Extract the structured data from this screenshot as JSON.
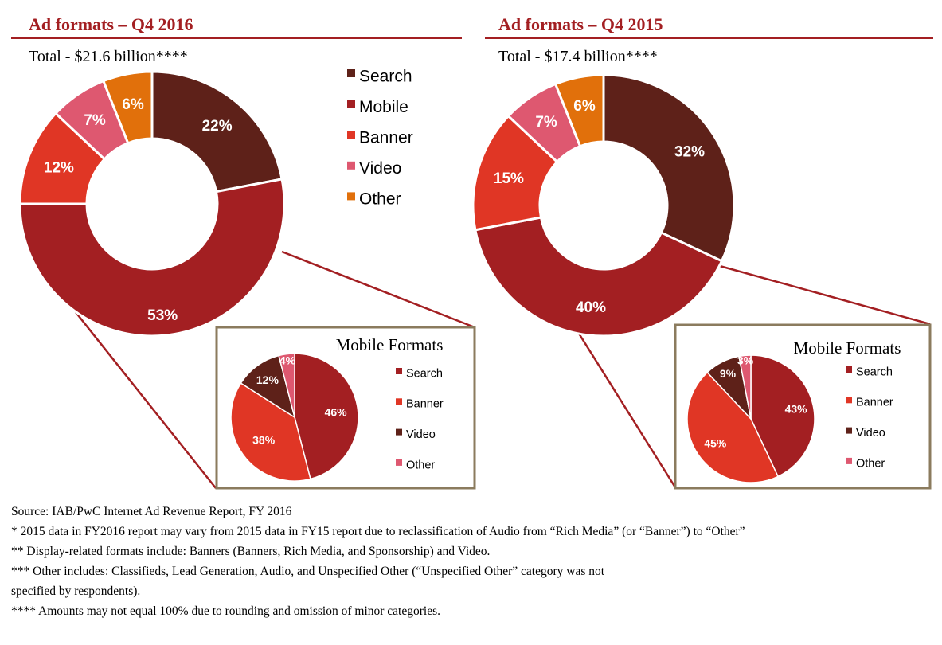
{
  "colors": {
    "search": "#5e2119",
    "mobile": "#a31f22",
    "banner": "#e03625",
    "video": "#de5870",
    "other": "#e1700b",
    "mobile_search": "#a31f22",
    "mobile_banner": "#e03625",
    "mobile_video": "#5e2119",
    "mobile_other": "#de5870",
    "title": "#a31f22",
    "inset_border": "#8b7b5e"
  },
  "panels": [
    {
      "title": "Ad formats – Q4 2016",
      "total": "Total - $21.6 billion****"
    },
    {
      "title": "Ad formats – Q4 2015",
      "total": "Total - $17.4 billion****"
    }
  ],
  "chart_data": [
    {
      "type": "pie",
      "variant": "donut",
      "title": "Ad formats – Q4 2016",
      "subtitle": "Total - $21.6 billion****",
      "legend_position": "right",
      "slices": [
        {
          "label": "Search",
          "value": 22,
          "text": "22%"
        },
        {
          "label": "Mobile",
          "value": 53,
          "text": "53%"
        },
        {
          "label": "Banner",
          "value": 12,
          "text": "12%"
        },
        {
          "label": "Video",
          "value": 7,
          "text": "7%"
        },
        {
          "label": "Other",
          "value": 6,
          "text": "6%"
        }
      ]
    },
    {
      "type": "pie",
      "title": "Mobile Formats",
      "legend_position": "right",
      "slices": [
        {
          "label": "Search",
          "value": 46,
          "text": "46%"
        },
        {
          "label": "Banner",
          "value": 38,
          "text": "38%"
        },
        {
          "label": "Video",
          "value": 12,
          "text": "12%"
        },
        {
          "label": "Other",
          "value": 4,
          "text": "4%"
        }
      ]
    },
    {
      "type": "pie",
      "variant": "donut",
      "title": "Ad formats – Q4 2015",
      "subtitle": "Total - $17.4 billion****",
      "slices": [
        {
          "label": "Search",
          "value": 32,
          "text": "32%"
        },
        {
          "label": "Mobile",
          "value": 40,
          "text": "40%"
        },
        {
          "label": "Banner",
          "value": 15,
          "text": "15%"
        },
        {
          "label": "Video",
          "value": 7,
          "text": "7%"
        },
        {
          "label": "Other",
          "value": 6,
          "text": "6%"
        }
      ]
    },
    {
      "type": "pie",
      "title": "Mobile Formats",
      "legend_position": "right",
      "slices": [
        {
          "label": "Search",
          "value": 43,
          "text": "43%"
        },
        {
          "label": "Banner",
          "value": 45,
          "text": "45%"
        },
        {
          "label": "Video",
          "value": 9,
          "text": "9%"
        },
        {
          "label": "Other",
          "value": 3,
          "text": "3%"
        }
      ]
    }
  ],
  "footnotes": [
    "Source: IAB/PwC Internet Ad Revenue Report, FY 2016",
    "* 2015 data in FY2016 report may vary from 2015 data in FY15 report due to reclassification of Audio from “Rich Media” (or “Banner”) to “Other”",
    "** Display-related formats include: Banners (Banners, Rich Media, and Sponsorship) and Video.",
    "*** Other includes: Classifieds, Lead Generation, Audio, and Unspecified Other (“Unspecified Other” category was not",
    "specified by respondents).",
    "**** Amounts may not equal 100% due to rounding and omission of minor categories."
  ]
}
